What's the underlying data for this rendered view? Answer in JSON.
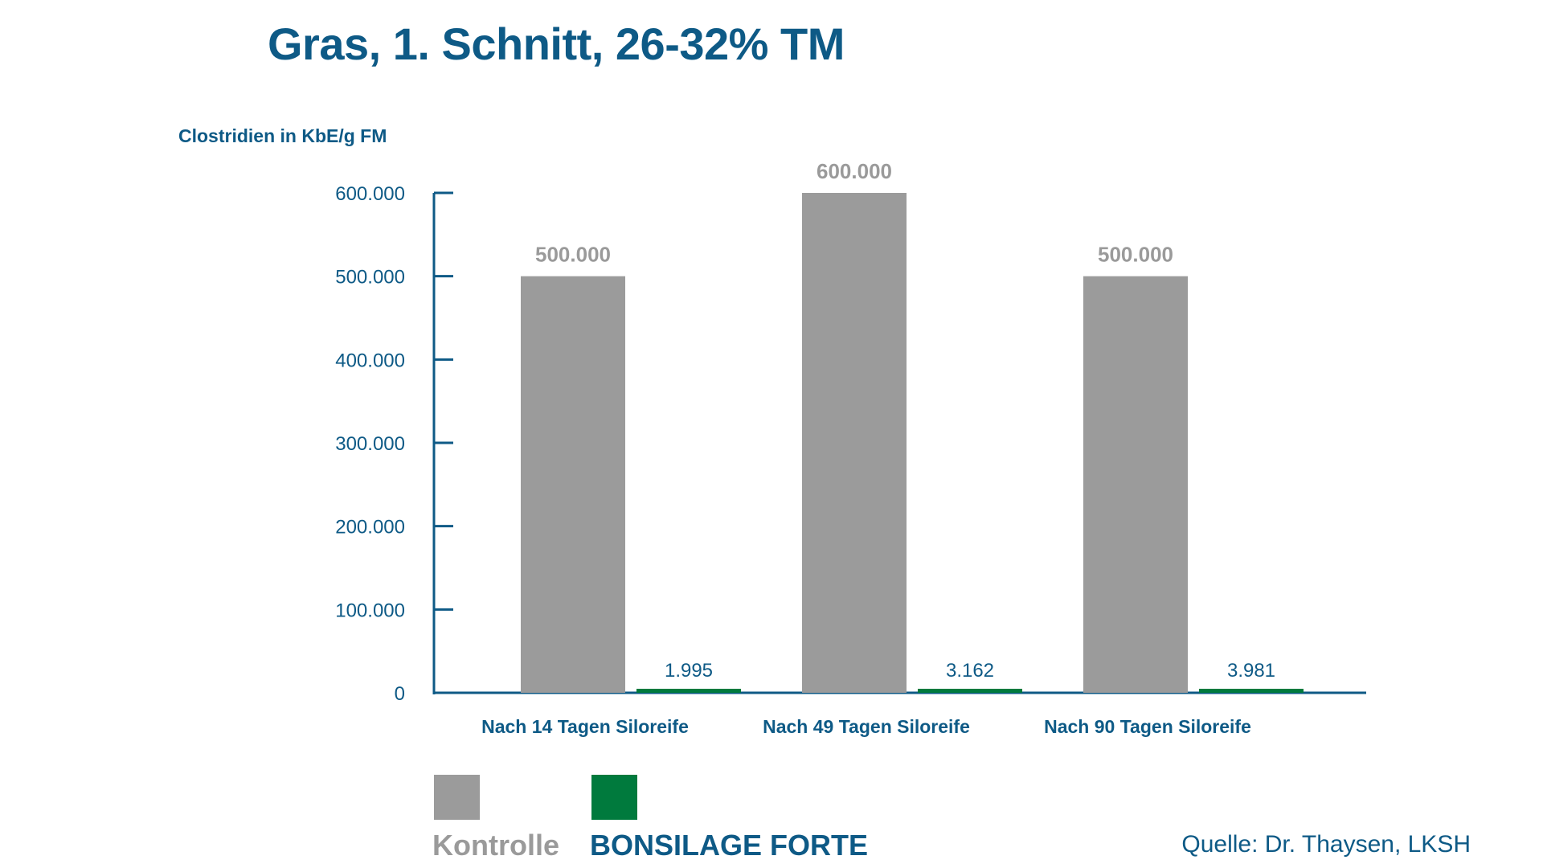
{
  "title": "Gras, 1. Schnitt, 26-32% TM",
  "source": "Quelle: Dr. Thaysen, LKSH",
  "colors": {
    "Kontrolle": "#9b9b9b",
    "BONSILAGE FORTE": "#007a3d",
    "text_blue": "#0e5a86",
    "label_grey": "#9a9a9a"
  },
  "chart_data": {
    "type": "bar",
    "ylabel": "Clostridien in KbE/g FM",
    "xlabel": "",
    "categories": [
      "Nach 14 Tagen Siloreife",
      "Nach 49 Tagen Siloreife",
      "Nach 90 Tagen Siloreife"
    ],
    "series": [
      {
        "name": "Kontrolle",
        "values": [
          500000,
          600000,
          500000
        ],
        "labels": [
          "500.000",
          "600.000",
          "500.000"
        ]
      },
      {
        "name": "BONSILAGE FORTE",
        "values": [
          1995,
          3162,
          3981
        ],
        "labels": [
          "1.995",
          "3.162",
          "3.981"
        ]
      }
    ],
    "ylim": [
      0,
      600000
    ],
    "yticks": [
      0,
      100000,
      200000,
      300000,
      400000,
      500000,
      600000
    ],
    "ytick_labels": [
      "0",
      "100.000",
      "200.000",
      "300.000",
      "400.000",
      "500.000",
      "600.000"
    ],
    "grid": false,
    "legend_position": "bottom-left"
  }
}
